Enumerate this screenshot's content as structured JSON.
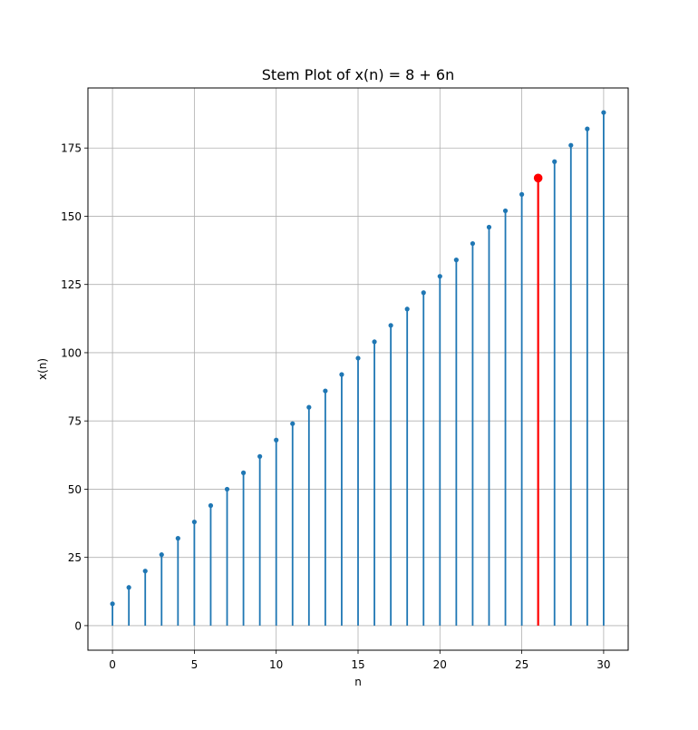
{
  "chart_data": {
    "type": "stem",
    "title": "Stem Plot of x(n) = 8 + 6n",
    "xlabel": "n",
    "ylabel": "x(n)",
    "xlim": [
      -1.5,
      31.5
    ],
    "ylim": [
      -9.0,
      197.0
    ],
    "x_ticks": [
      0,
      5,
      10,
      15,
      20,
      25,
      30
    ],
    "x_tick_labels": [
      "0",
      "5",
      "10",
      "15",
      "20",
      "25",
      "30"
    ],
    "y_ticks": [
      0,
      25,
      50,
      75,
      100,
      125,
      150,
      175
    ],
    "y_tick_labels": [
      "0",
      "25",
      "50",
      "75",
      "100",
      "125",
      "150",
      "175"
    ],
    "grid": true,
    "baseline": 0,
    "series": [
      {
        "name": "x(n)",
        "color": "#1f77b4",
        "x": [
          0,
          1,
          2,
          3,
          4,
          5,
          6,
          7,
          8,
          9,
          10,
          11,
          12,
          13,
          14,
          15,
          16,
          17,
          18,
          19,
          20,
          21,
          22,
          23,
          24,
          25,
          26,
          27,
          28,
          29,
          30
        ],
        "values": [
          8,
          14,
          20,
          26,
          32,
          38,
          44,
          50,
          56,
          62,
          68,
          74,
          80,
          86,
          92,
          98,
          104,
          110,
          116,
          122,
          128,
          134,
          140,
          146,
          152,
          158,
          164,
          170,
          176,
          182,
          188
        ]
      }
    ],
    "highlight": {
      "x": 26,
      "value": 164,
      "color": "#ff0000"
    }
  }
}
